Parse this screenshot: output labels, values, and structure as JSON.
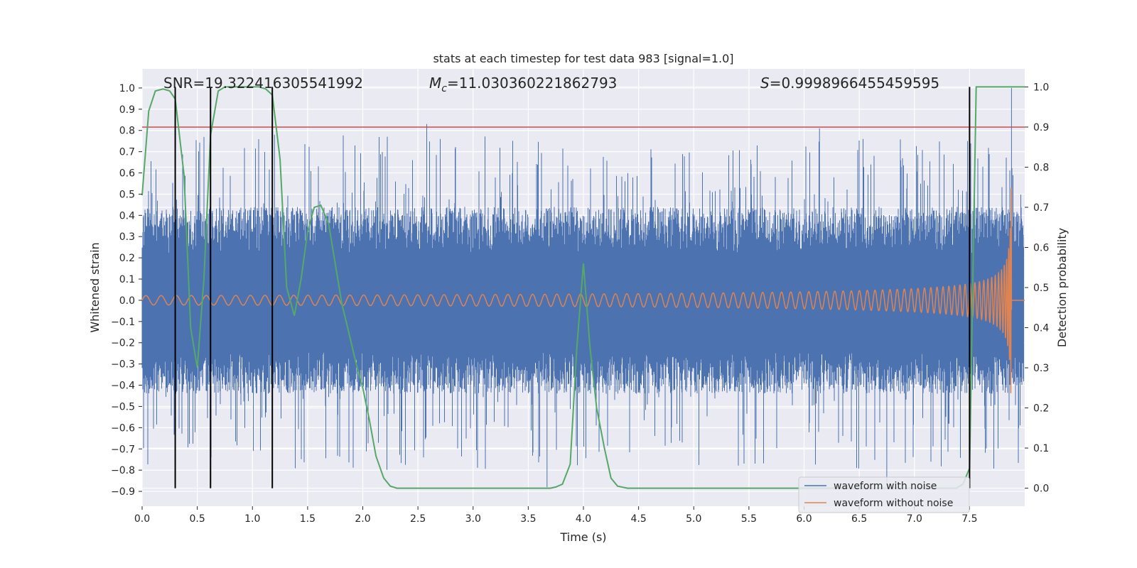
{
  "chart_data": {
    "type": "line",
    "title": "stats at each timestep for test data 983 [signal=1.0]",
    "xlabel": "Time (s)",
    "ylabel": "Whitened strain",
    "ylabel_right": "Detection probability",
    "xlim": [
      0.0,
      8.0
    ],
    "ylim": [
      -0.97,
      1.09
    ],
    "ylim_right": [
      -0.045,
      1.045
    ],
    "x_ticks": [
      "0.0",
      "0.5",
      "1.0",
      "1.5",
      "2.0",
      "2.5",
      "3.0",
      "3.5",
      "4.0",
      "4.5",
      "5.0",
      "5.5",
      "6.0",
      "6.5",
      "7.0",
      "7.5"
    ],
    "y_ticks": [
      "1.0",
      "0.9",
      "0.8",
      "0.7",
      "0.6",
      "0.5",
      "0.4",
      "0.3",
      "0.2",
      "0.1",
      "0.0",
      "−0.1",
      "−0.2",
      "−0.3",
      "−0.4",
      "−0.5",
      "−0.6",
      "−0.7",
      "−0.8",
      "−0.9"
    ],
    "y_ticks_right": [
      "1.0",
      "0.9",
      "0.8",
      "0.7",
      "0.6",
      "0.5",
      "0.4",
      "0.3",
      "0.2",
      "0.1",
      "0.0"
    ],
    "annotations": {
      "snr": "SNR=19.322416305541992",
      "mc_symbol": "M",
      "mc_sub": "c",
      "mc_value": "=11.030360221862793",
      "s_symbol": "S",
      "s_value": "=0.9998966455459595"
    },
    "threshold": {
      "axis": "right",
      "value": 0.9,
      "color": "#c44e52"
    },
    "vertical_markers": [
      0.3,
      0.62,
      1.18,
      7.5
    ],
    "series": [
      {
        "name": "waveform with noise",
        "color": "#4c72b0",
        "axis": "left",
        "description": "dense noisy strain, amplitude roughly ±0.45 with spikes to ±0.8"
      },
      {
        "name": "waveform without noise",
        "color": "#dd8452",
        "axis": "left",
        "description": "chirp signal growing to ~0.58 at merger near t=7.88 s"
      },
      {
        "name": "detection probability",
        "color": "#55a868",
        "axis": "right",
        "x": [
          0.0,
          0.06,
          0.12,
          0.19,
          0.25,
          0.3,
          0.38,
          0.44,
          0.5,
          0.56,
          0.62,
          0.69,
          0.75,
          0.81,
          0.88,
          0.94,
          1.0,
          1.06,
          1.12,
          1.18,
          1.25,
          1.31,
          1.38,
          1.44,
          1.5,
          1.56,
          1.62,
          1.69,
          1.75,
          1.81,
          1.88,
          1.94,
          2.0,
          2.06,
          2.12,
          2.19,
          2.25,
          2.31,
          2.4,
          3.0,
          3.5,
          3.7,
          3.75,
          3.81,
          3.88,
          3.94,
          4.0,
          4.06,
          4.12,
          4.19,
          4.25,
          4.31,
          4.4,
          5.0,
          6.0,
          7.0,
          7.38,
          7.44,
          7.5,
          7.56,
          7.62,
          8.0
        ],
        "values": [
          0.73,
          0.94,
          0.99,
          0.995,
          0.99,
          0.97,
          0.78,
          0.4,
          0.3,
          0.52,
          0.88,
          0.99,
          1.0,
          1.0,
          1.0,
          1.0,
          1.0,
          1.0,
          0.995,
          0.98,
          0.82,
          0.5,
          0.43,
          0.52,
          0.64,
          0.7,
          0.705,
          0.66,
          0.56,
          0.46,
          0.38,
          0.31,
          0.25,
          0.17,
          0.08,
          0.025,
          0.005,
          0.0,
          0.0,
          0.0,
          0.0,
          0.0,
          0.003,
          0.01,
          0.06,
          0.35,
          0.56,
          0.35,
          0.2,
          0.1,
          0.025,
          0.005,
          0.0,
          0.0,
          0.0,
          0.0,
          0.0,
          0.01,
          0.05,
          1.0,
          1.0,
          1.0
        ]
      }
    ],
    "legend": {
      "placement": "lower-right",
      "entries": [
        "waveform with noise",
        "waveform without noise"
      ]
    },
    "grid": true
  }
}
